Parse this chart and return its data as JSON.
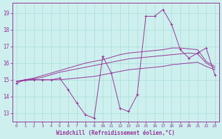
{
  "xlabel": "Windchill (Refroidissement éolien,°C)",
  "background_color": "#cdf0ee",
  "grid_color": "#a8ddd8",
  "line_color": "#993399",
  "x_values": [
    0,
    1,
    2,
    3,
    4,
    5,
    6,
    7,
    8,
    9,
    10,
    11,
    12,
    13,
    14,
    15,
    16,
    17,
    18,
    19,
    20,
    21,
    22,
    23
  ],
  "main_series": [
    14.8,
    15.0,
    15.0,
    15.0,
    15.0,
    15.1,
    14.4,
    13.6,
    12.9,
    12.7,
    16.4,
    15.4,
    13.3,
    13.1,
    14.1,
    18.8,
    18.8,
    19.2,
    18.3,
    16.8,
    16.3,
    16.6,
    16.9,
    15.3
  ],
  "trend_high": [
    14.9,
    15.0,
    15.1,
    15.25,
    15.4,
    15.55,
    15.7,
    15.85,
    16.0,
    16.1,
    16.2,
    16.35,
    16.5,
    16.6,
    16.65,
    16.7,
    16.75,
    16.8,
    16.9,
    16.9,
    16.85,
    16.8,
    16.1,
    15.8
  ],
  "trend_mid": [
    14.9,
    15.0,
    15.05,
    15.15,
    15.3,
    15.45,
    15.55,
    15.65,
    15.75,
    15.85,
    15.95,
    16.05,
    16.15,
    16.25,
    16.3,
    16.35,
    16.4,
    16.45,
    16.5,
    16.55,
    16.6,
    16.55,
    16.0,
    15.7
  ],
  "trend_low": [
    14.9,
    14.95,
    15.0,
    15.0,
    15.0,
    15.0,
    15.05,
    15.1,
    15.15,
    15.2,
    15.3,
    15.4,
    15.5,
    15.6,
    15.65,
    15.7,
    15.75,
    15.8,
    15.9,
    15.95,
    16.0,
    16.05,
    15.8,
    15.6
  ],
  "ylim": [
    12.5,
    19.6
  ],
  "yticks": [
    13,
    14,
    15,
    16,
    17,
    18,
    19
  ],
  "xticks": [
    0,
    1,
    2,
    3,
    4,
    5,
    6,
    7,
    8,
    9,
    10,
    11,
    12,
    13,
    14,
    15,
    16,
    17,
    18,
    19,
    20,
    21,
    22,
    23
  ]
}
